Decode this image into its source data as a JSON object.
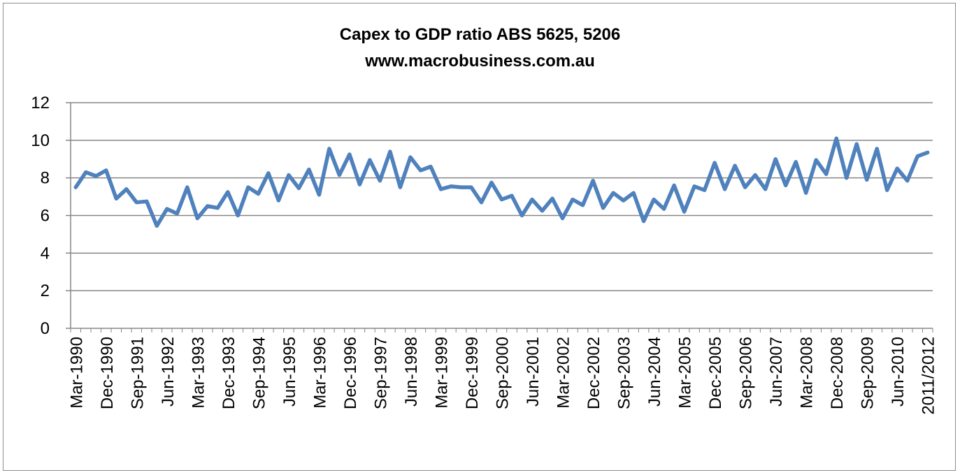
{
  "chart_data": {
    "type": "line",
    "title": "Capex to GDP ratio ABS 5625, 5206",
    "subtitle": "www.macrobusiness.com.au",
    "xlabel": "",
    "ylabel": "",
    "ylim": [
      0,
      12
    ],
    "yticks": [
      0,
      2,
      4,
      6,
      8,
      10,
      12
    ],
    "grid": true,
    "legend": "none",
    "color": "#4f81bd",
    "xtick_labels": [
      "Mar-1990",
      "Dec-1990",
      "Sep-1991",
      "Jun-1992",
      "Mar-1993",
      "Dec-1993",
      "Sep-1994",
      "Jun-1995",
      "Mar-1996",
      "Dec-1996",
      "Sep-1997",
      "Jun-1998",
      "Mar-1999",
      "Dec-1999",
      "Sep-2000",
      "Jun-2001",
      "Mar-2002",
      "Dec-2002",
      "Sep-2003",
      "Jun-2004",
      "Mar-2005",
      "Dec-2005",
      "Sep-2006",
      "Jun-2007",
      "Mar-2008",
      "Dec-2008",
      "Sep-2009",
      "Jun-2010",
      "2011/2012"
    ],
    "series": [
      {
        "values": [
          7.5,
          8.3,
          8.1,
          8.4,
          6.9,
          7.4,
          6.7,
          6.75,
          5.45,
          6.35,
          6.1,
          7.5,
          5.85,
          6.5,
          6.4,
          7.25,
          6.0,
          7.5,
          7.15,
          8.25,
          6.8,
          8.15,
          7.45,
          8.45,
          7.1,
          9.55,
          8.15,
          9.25,
          7.65,
          8.95,
          7.85,
          9.4,
          7.5,
          9.1,
          8.4,
          8.6,
          7.4,
          7.55,
          7.5,
          7.5,
          6.7,
          7.75,
          6.85,
          7.05,
          6.0,
          6.85,
          6.25,
          6.9,
          5.85,
          6.85,
          6.55,
          7.85,
          6.4,
          7.2,
          6.8,
          7.2,
          5.7,
          6.85,
          6.35,
          7.6,
          6.2,
          7.55,
          7.35,
          8.8,
          7.4,
          8.65,
          7.5,
          8.15,
          7.4,
          9.0,
          7.6,
          8.85,
          7.2,
          8.95,
          8.2,
          10.1,
          8.0,
          9.8,
          7.9,
          9.55,
          7.35,
          8.5,
          7.85,
          9.15,
          9.35
        ]
      }
    ]
  }
}
